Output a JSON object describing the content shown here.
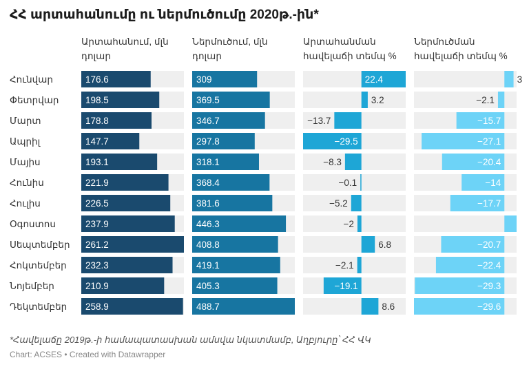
{
  "title": "ՀՀ արտահանումը ու ներմուծումը 2020թ.-ին*",
  "columns": [
    {
      "label_line1": "Արտահանում, մլն",
      "label_line2": "դոլար"
    },
    {
      "label_line1": "Ներմուծում, մլն",
      "label_line2": "դոլար"
    },
    {
      "label_line1": "Արտահանման",
      "label_line2": "հավելաճի տեմպ %"
    },
    {
      "label_line1": "Ներմուծման",
      "label_line2": "հավելաճի տեմպ %"
    }
  ],
  "notes": "*Հավելաճը 2019թ.-ի համապատասխան ամսվա նկատմամբ, Աղբյուրը՝ ՀՀ ՎԿ",
  "source": "Chart: ACSES • Created with Datawrapper",
  "colors": {
    "export": "#1a4a6e",
    "import": "#1775a1",
    "export_growth": "#1ea6d6",
    "import_growth": "#6dd3f7",
    "track": "#efefef"
  },
  "chart_data": {
    "type": "bar",
    "categories": [
      "Հունվար",
      "Փետրվար",
      "Մարտ",
      "Ապրիլ",
      "Մայիս",
      "Հունիս",
      "Հուլիս",
      "Օգոստոս",
      "Սեպտեմբեր",
      "Հոկտեմբեր",
      "Նոյեմբեր",
      "Դեկտեմբեր"
    ],
    "series": [
      {
        "name": "Արտահանում, մլն դոլար",
        "values": [
          176.6,
          198.5,
          178.8,
          147.7,
          193.1,
          221.9,
          226.5,
          237.9,
          261.2,
          232.3,
          210.9,
          258.9
        ]
      },
      {
        "name": "Ներմուծում, մլն դոլար",
        "values": [
          309,
          369.5,
          346.7,
          297.8,
          318.1,
          368.4,
          381.6,
          446.3,
          408.8,
          419.1,
          405.3,
          488.7
        ]
      },
      {
        "name": "Արտահանման հավելաճի տեմպ %",
        "values": [
          22.4,
          3.2,
          -13.7,
          -29.5,
          -8.3,
          -0.1,
          -5.2,
          -2,
          6.8,
          -2.1,
          -19.1,
          8.6
        ]
      },
      {
        "name": "Ներմուծման հավելաճի տեմպ %",
        "values": [
          3,
          -2.1,
          -15.7,
          -27.1,
          -20.4,
          -14,
          -17.7,
          4,
          -20.7,
          -22.4,
          -29.3,
          -29.6
        ]
      }
    ],
    "value_labels": [
      [
        "176.6",
        "198.5",
        "178.8",
        "147.7",
        "193.1",
        "221.9",
        "226.5",
        "237.9",
        "261.2",
        "232.3",
        "210.9",
        "258.9"
      ],
      [
        "309",
        "369.5",
        "346.7",
        "297.8",
        "318.1",
        "368.4",
        "381.6",
        "446.3",
        "408.8",
        "419.1",
        "405.3",
        "488.7"
      ],
      [
        "22.4",
        "3.2",
        "-13.7",
        "-29.5",
        "-8.3",
        "-0.1",
        "-5.2",
        "-2",
        "6.8",
        "-2.1",
        "-19.1",
        "8.6"
      ],
      [
        "3",
        "-2.1",
        "-15.7",
        "-27.1",
        "-20.4",
        "-14",
        "-17.7",
        "",
        "-20.7",
        "-22.4",
        "-29.3",
        "-29.6"
      ]
    ],
    "xlim": [
      [
        0,
        261.2
      ],
      [
        0,
        488.7
      ],
      [
        -29.5,
        22.4
      ],
      [
        -29.6,
        4
      ]
    ],
    "grid": false,
    "legend": "none"
  }
}
